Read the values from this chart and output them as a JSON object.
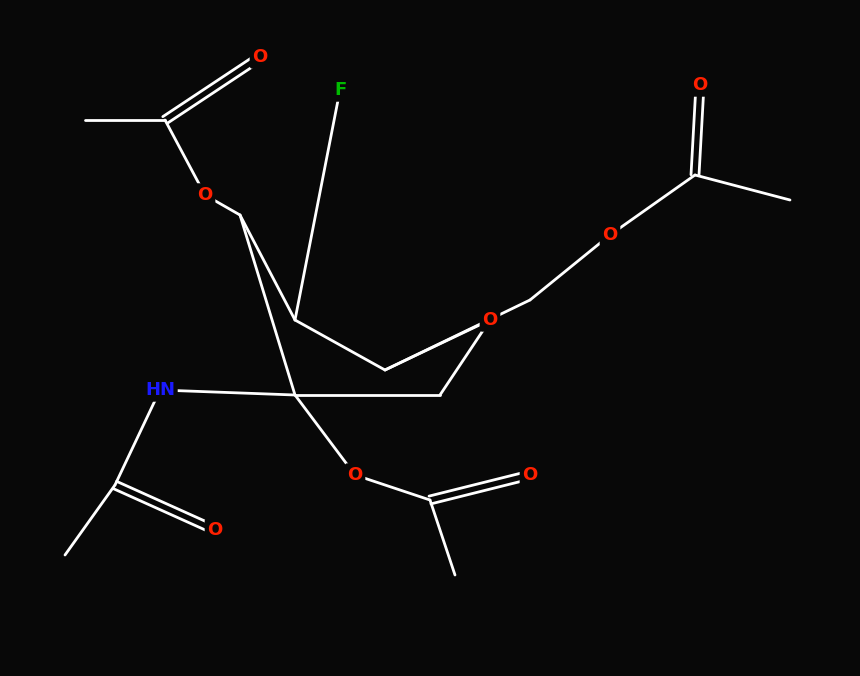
{
  "background_color": "#080808",
  "bond_color": "#ffffff",
  "atom_colors": {
    "O": "#ff2000",
    "F": "#00bb00",
    "N": "#1a1aff",
    "C": "#ffffff"
  },
  "figsize": [
    8.6,
    6.76
  ],
  "dpi": 100
}
